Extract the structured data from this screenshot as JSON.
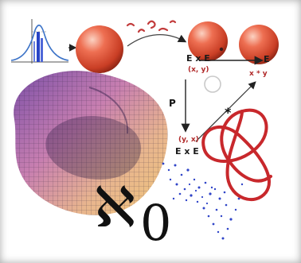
{
  "labels": {
    "exe_top": "E x E",
    "pair_top": "(x, y)",
    "e_label": "E",
    "xstar_y": "x * y",
    "p_label": "P",
    "star_label": "*",
    "pair_bottom": "(y, x)",
    "exe_bottom": "E x E",
    "aleph_zero": "ℵ",
    "zero": "0"
  },
  "colors": {
    "sphere": "#e2553b",
    "arrow_red": "#c23b3b",
    "knot": "#c8282c",
    "scatter": "#3045c8",
    "text_red": "#b12a2a"
  },
  "icons": [
    "distribution-plot",
    "sphere",
    "torus-surface",
    "trefoil-knot",
    "scatter-cloud"
  ]
}
